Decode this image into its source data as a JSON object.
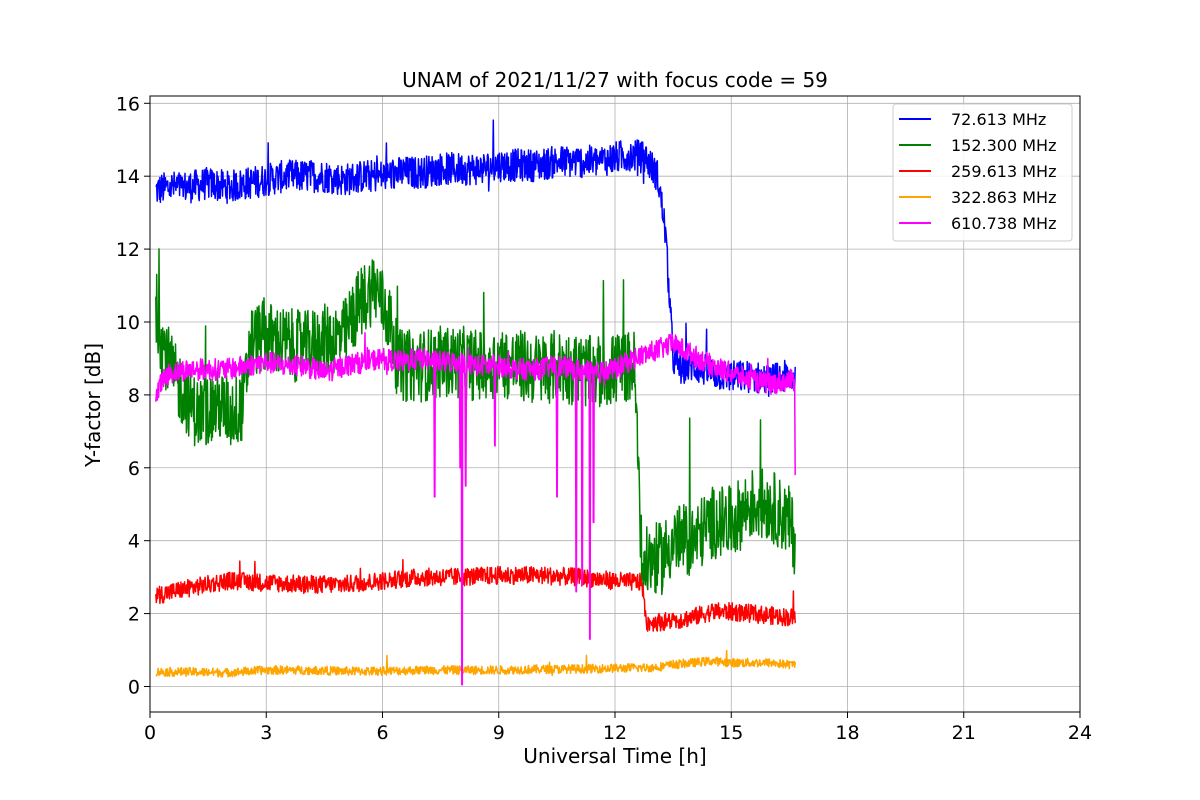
{
  "chart_data": {
    "type": "line",
    "title": "UNAM of 2021/11/27 with focus code = 59",
    "xlabel": "Universal Time [h]",
    "ylabel": "Y-factor [dB]",
    "xlim": [
      0,
      24
    ],
    "ylim": [
      -0.7,
      16.2
    ],
    "xticks": [
      0,
      3,
      6,
      9,
      12,
      15,
      18,
      21,
      24
    ],
    "yticks": [
      0,
      2,
      4,
      6,
      8,
      10,
      12,
      14,
      16
    ],
    "grid": true,
    "legend_position": "top-right",
    "series": [
      {
        "name": " 72.613 MHz",
        "color": "#0000ff",
        "x": [
          0.15,
          0.5,
          1,
          1.5,
          2,
          2.5,
          3,
          3.5,
          4,
          4.5,
          5,
          5.5,
          6,
          6.5,
          7,
          7.5,
          8,
          8.5,
          9,
          9.5,
          10,
          10.5,
          11,
          11.5,
          12,
          12.4,
          12.8,
          13.1,
          13.3,
          13.5,
          13.7,
          14,
          14.5,
          15,
          15.5,
          16,
          16.4,
          16.65
        ],
        "y": [
          13.6,
          13.7,
          13.7,
          13.8,
          13.7,
          13.8,
          13.9,
          14.0,
          14.0,
          14.0,
          13.9,
          14.0,
          14.0,
          14.1,
          14.1,
          14.2,
          14.2,
          14.2,
          14.3,
          14.3,
          14.3,
          14.4,
          14.4,
          14.4,
          14.5,
          14.6,
          14.5,
          14.0,
          12.5,
          9.0,
          8.7,
          8.8,
          8.6,
          8.5,
          8.5,
          8.4,
          8.5,
          8.5
        ],
        "noise": 0.45
      },
      {
        "name": "152.300 MHz",
        "color": "#008000",
        "x": [
          0.15,
          0.3,
          0.6,
          0.9,
          1.2,
          1.5,
          1.8,
          2.1,
          2.4,
          2.6,
          3,
          3.5,
          4,
          4.5,
          5,
          5.4,
          5.8,
          6.2,
          6.4,
          7,
          7.5,
          8,
          8.5,
          9,
          9.5,
          10,
          10.5,
          11,
          11.5,
          12,
          12.5,
          12.7,
          12.9,
          13.2,
          13.5,
          14,
          14.5,
          15,
          15.5,
          16,
          16.5,
          16.65
        ],
        "y": [
          10.5,
          9.5,
          8.5,
          8.0,
          7.5,
          7.6,
          7.7,
          7.5,
          7.7,
          9.5,
          9.6,
          9.4,
          9.3,
          9.5,
          9.6,
          10.5,
          11.0,
          10.0,
          8.8,
          8.8,
          8.9,
          8.9,
          8.8,
          8.9,
          8.8,
          8.7,
          8.8,
          8.7,
          8.6,
          8.7,
          8.8,
          3.2,
          3.5,
          3.5,
          4.0,
          4.0,
          4.5,
          4.5,
          5.0,
          5.0,
          4.5,
          4.0
        ],
        "noise": 1.0
      },
      {
        "name": "259.613 MHz",
        "color": "#ff0000",
        "x": [
          0.15,
          1,
          2,
          3,
          4,
          5,
          6,
          7,
          8,
          9,
          10,
          11,
          12,
          12.7,
          12.8,
          13.5,
          14,
          14.5,
          15,
          15.5,
          16,
          16.5,
          16.65
        ],
        "y": [
          2.5,
          2.7,
          2.9,
          2.85,
          2.8,
          2.8,
          2.9,
          3.0,
          3.0,
          3.05,
          3.05,
          3.0,
          2.9,
          2.85,
          1.75,
          1.8,
          1.9,
          2.05,
          2.05,
          2.0,
          1.95,
          1.9,
          1.9
        ],
        "noise": 0.25
      },
      {
        "name": "322.863 MHz",
        "color": "#ffa500",
        "x": [
          0.15,
          1,
          2,
          3,
          4,
          5,
          6,
          7,
          8,
          9,
          10,
          11,
          12,
          13,
          13.5,
          14,
          14.5,
          15,
          15.5,
          16,
          16.5,
          16.65
        ],
        "y": [
          0.4,
          0.4,
          0.38,
          0.45,
          0.45,
          0.42,
          0.42,
          0.45,
          0.45,
          0.45,
          0.47,
          0.48,
          0.5,
          0.52,
          0.6,
          0.65,
          0.7,
          0.65,
          0.65,
          0.65,
          0.6,
          0.6
        ],
        "noise": 0.12
      },
      {
        "name": "610.738 MHz",
        "color": "#ff00ff",
        "x": [
          0.15,
          0.5,
          1,
          1.5,
          2,
          2.5,
          3,
          3.5,
          4,
          4.5,
          5,
          5.5,
          6,
          6.5,
          7,
          7.5,
          8,
          8.5,
          9,
          9.5,
          10,
          10.5,
          11,
          11.5,
          12,
          12.5,
          13,
          13.5,
          14,
          14.5,
          15,
          15.5,
          16,
          16.5,
          16.65
        ],
        "y": [
          8.1,
          8.6,
          8.7,
          8.7,
          8.7,
          8.8,
          8.9,
          8.8,
          8.8,
          8.6,
          8.8,
          8.9,
          9.0,
          8.9,
          9.0,
          8.9,
          8.9,
          8.8,
          8.8,
          8.7,
          8.7,
          8.8,
          8.7,
          8.6,
          8.7,
          9.0,
          9.2,
          9.4,
          9.1,
          8.8,
          8.6,
          8.4,
          8.3,
          8.4,
          8.4
        ],
        "noise": 0.3,
        "spikes": [
          [
            7.35,
            5.2
          ],
          [
            8.0,
            6.0
          ],
          [
            8.05,
            0.05
          ],
          [
            8.15,
            5.5
          ],
          [
            8.9,
            6.6
          ],
          [
            10.5,
            5.2
          ],
          [
            11.0,
            2.6
          ],
          [
            11.15,
            2.8
          ],
          [
            11.35,
            1.3
          ],
          [
            11.45,
            4.5
          ],
          [
            16.65,
            5.8
          ]
        ]
      }
    ]
  }
}
